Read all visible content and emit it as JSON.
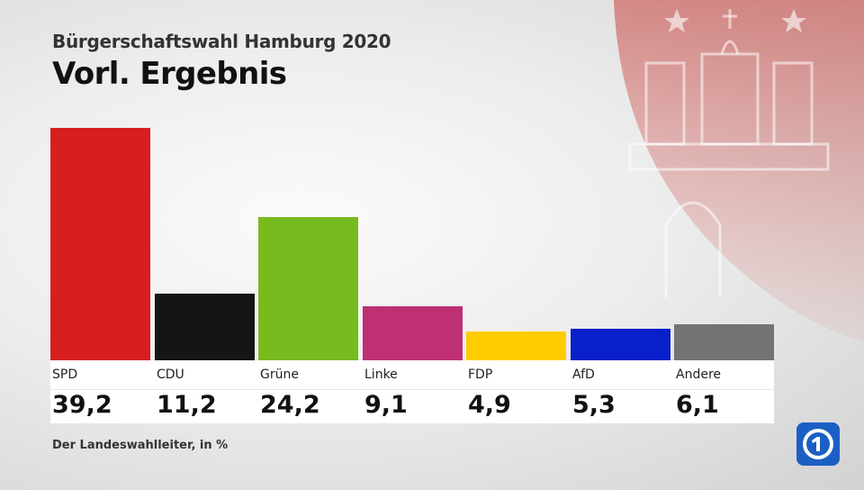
{
  "header": {
    "subtitle": "Bürgerschaftswahl Hamburg 2020",
    "title": "Vorl. Ergebnis"
  },
  "source": "Der Landeswahlleiter, in %",
  "logo": {
    "name": "ard-tagesschau-logo",
    "color": "#1c5fc4"
  },
  "crest": {
    "name": "hamburg-coat-of-arms",
    "color": "#c9403a"
  },
  "chart_data": {
    "type": "bar",
    "categories": [
      "SPD",
      "CDU",
      "Grüne",
      "Linke",
      "FDP",
      "AfD",
      "Andere"
    ],
    "values": [
      39.2,
      11.2,
      24.2,
      9.1,
      4.9,
      5.3,
      6.1
    ],
    "value_labels": [
      "39,2",
      "11,2",
      "24,2",
      "9,1",
      "4,9",
      "5,3",
      "6,1"
    ],
    "colors": [
      "#d71f1f",
      "#151515",
      "#78bb1f",
      "#be2f73",
      "#ffcc00",
      "#0a1fcc",
      "#737373"
    ],
    "title": "Vorl. Ergebnis",
    "unit": "%",
    "ylim": [
      0,
      39.2
    ]
  }
}
